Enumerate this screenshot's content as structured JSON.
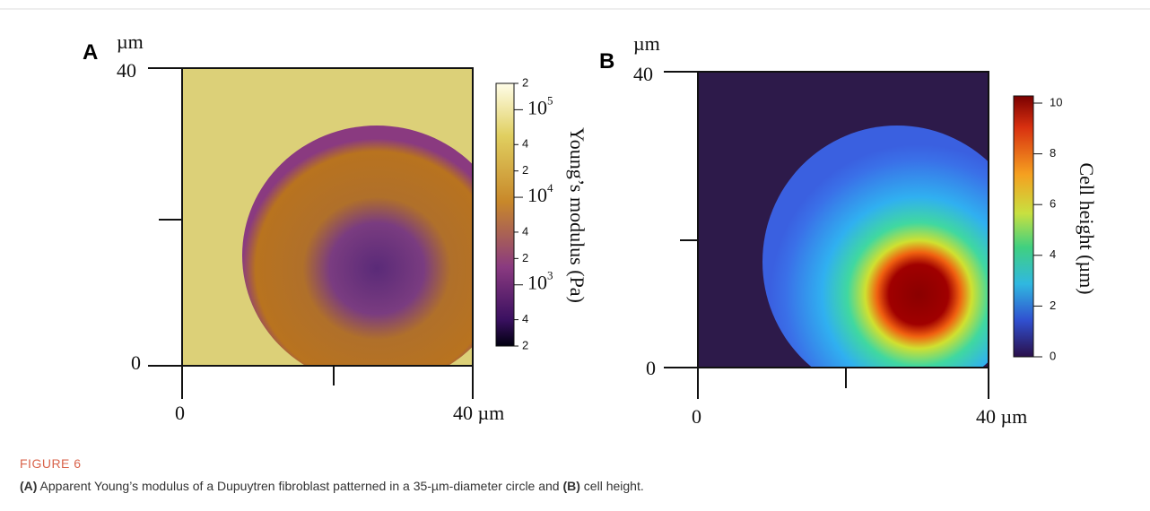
{
  "panels": [
    {
      "label": "A",
      "y_unit": "µm",
      "y_top": "40",
      "y_bottom": "0",
      "x_left": "0",
      "x_right": "40 µm",
      "colorbar": {
        "label": "Young’s modulus (Pa)",
        "ticks": [
          {
            "text": "2"
          },
          {
            "base": "10",
            "exp": "5"
          },
          {
            "text": "4"
          },
          {
            "text": "2"
          },
          {
            "base": "10",
            "exp": "4"
          },
          {
            "text": "4"
          },
          {
            "text": "2"
          },
          {
            "base": "10",
            "exp": "3"
          },
          {
            "text": "4"
          },
          {
            "text": "2"
          }
        ]
      }
    },
    {
      "label": "B",
      "y_unit": "µm",
      "y_top": "40",
      "y_bottom": "0",
      "x_left": "0",
      "x_right": "40 µm",
      "colorbar": {
        "label": "Cell height (µm)",
        "ticks": [
          {
            "text": "10"
          },
          {
            "text": "8"
          },
          {
            "text": "6"
          },
          {
            "text": "4"
          },
          {
            "text": "2"
          },
          {
            "text": "0"
          }
        ]
      }
    }
  ],
  "figure": {
    "label": "FIGURE 6",
    "caption": {
      "a_label": "(A)",
      "text1": " Apparent Young’s modulus of a Dupuytren fibroblast patterned in a 35-µm-diameter circle and ",
      "b_label": "(B)",
      "text2": " cell height."
    }
  }
}
